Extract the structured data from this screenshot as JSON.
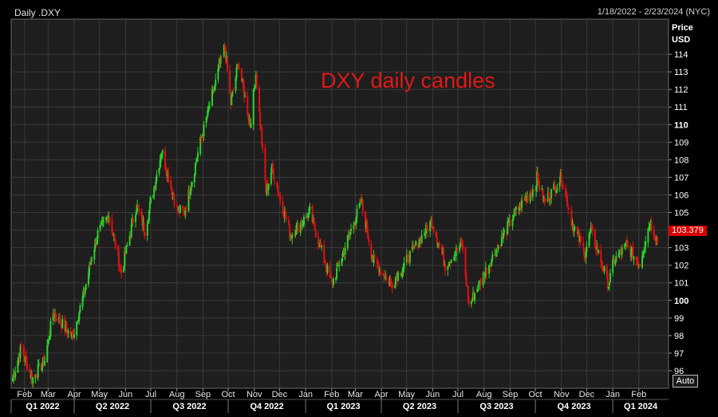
{
  "header": {
    "title": "Daily .DXY",
    "range": "1/18/2022 - 2/23/2024 (NYC)"
  },
  "axis": {
    "price_label": "Price",
    "unit_label": "USD",
    "auto_label": "Auto",
    "last_price": "103.379"
  },
  "colors": {
    "background": "#000000",
    "plot_background": "#1e1e1e",
    "grid": "#3a3a3a",
    "up": "#2bd12b",
    "down": "#e01010",
    "annotation": "#e01818",
    "last_tag": "#d80000"
  },
  "chart_data": {
    "type": "candlestick",
    "title": "DXY daily candles",
    "ylim": [
      95,
      116
    ],
    "y_ticks": [
      96,
      97,
      98,
      99,
      100,
      101,
      102,
      103,
      104,
      105,
      106,
      107,
      108,
      109,
      110,
      111,
      112,
      113,
      114
    ],
    "y_ticks_bold": [
      100,
      110
    ],
    "x_start": "2022-01-18",
    "x_end": "2024-02-23",
    "month_ticks": [
      {
        "label": "Feb",
        "date": "2022-02-01"
      },
      {
        "label": "Mar",
        "date": "2022-03-01"
      },
      {
        "label": "Apr",
        "date": "2022-04-01"
      },
      {
        "label": "May",
        "date": "2022-05-01"
      },
      {
        "label": "Jun",
        "date": "2022-06-01"
      },
      {
        "label": "Jul",
        "date": "2022-07-01"
      },
      {
        "label": "Aug",
        "date": "2022-08-01"
      },
      {
        "label": "Sep",
        "date": "2022-09-01"
      },
      {
        "label": "Oct",
        "date": "2022-10-01"
      },
      {
        "label": "Nov",
        "date": "2022-11-01"
      },
      {
        "label": "Dec",
        "date": "2022-12-01"
      },
      {
        "label": "Jan",
        "date": "2023-01-01"
      },
      {
        "label": "Feb",
        "date": "2023-02-01"
      },
      {
        "label": "Mar",
        "date": "2023-03-01"
      },
      {
        "label": "Apr",
        "date": "2023-04-01"
      },
      {
        "label": "May",
        "date": "2023-05-01"
      },
      {
        "label": "Jun",
        "date": "2023-06-01"
      },
      {
        "label": "Jul",
        "date": "2023-07-01"
      },
      {
        "label": "Aug",
        "date": "2023-08-01"
      },
      {
        "label": "Sep",
        "date": "2023-09-01"
      },
      {
        "label": "Oct",
        "date": "2023-10-01"
      },
      {
        "label": "Nov",
        "date": "2023-11-01"
      },
      {
        "label": "Dec",
        "date": "2023-12-01"
      },
      {
        "label": "Jan",
        "date": "2024-01-01"
      },
      {
        "label": "Feb",
        "date": "2024-02-01"
      }
    ],
    "quarter_ticks": [
      {
        "label": "Q1 2022",
        "start": "2022-01-01",
        "end": "2022-04-01"
      },
      {
        "label": "Q2 2022",
        "start": "2022-04-01",
        "end": "2022-07-01"
      },
      {
        "label": "Q3 2022",
        "start": "2022-07-01",
        "end": "2022-10-01"
      },
      {
        "label": "Q4 2022",
        "start": "2022-10-01",
        "end": "2023-01-01"
      },
      {
        "label": "Q1 2023",
        "start": "2023-01-01",
        "end": "2023-04-01"
      },
      {
        "label": "Q2 2023",
        "start": "2023-04-01",
        "end": "2023-07-01"
      },
      {
        "label": "Q3 2023",
        "start": "2023-07-01",
        "end": "2023-10-01"
      },
      {
        "label": "Q4 2023",
        "start": "2023-10-01",
        "end": "2024-01-01"
      },
      {
        "label": "Q1 2024",
        "start": "2024-01-01",
        "end": "2024-04-01"
      }
    ],
    "close_path": [
      {
        "date": "2022-01-18",
        "close": 95.6
      },
      {
        "date": "2022-01-28",
        "close": 97.3
      },
      {
        "date": "2022-02-10",
        "close": 95.5
      },
      {
        "date": "2022-02-25",
        "close": 96.6
      },
      {
        "date": "2022-03-07",
        "close": 99.3
      },
      {
        "date": "2022-03-30",
        "close": 97.9
      },
      {
        "date": "2022-04-12",
        "close": 100.3
      },
      {
        "date": "2022-04-28",
        "close": 103.7
      },
      {
        "date": "2022-05-12",
        "close": 104.9
      },
      {
        "date": "2022-05-27",
        "close": 101.6
      },
      {
        "date": "2022-06-14",
        "close": 105.4
      },
      {
        "date": "2022-06-24",
        "close": 104.0
      },
      {
        "date": "2022-07-14",
        "close": 108.5
      },
      {
        "date": "2022-08-01",
        "close": 105.2
      },
      {
        "date": "2022-08-10",
        "close": 105.0
      },
      {
        "date": "2022-08-29",
        "close": 109.0
      },
      {
        "date": "2022-09-27",
        "close": 114.5
      },
      {
        "date": "2022-10-04",
        "close": 111.2
      },
      {
        "date": "2022-10-13",
        "close": 113.5
      },
      {
        "date": "2022-10-27",
        "close": 110.0
      },
      {
        "date": "2022-11-03",
        "close": 112.9
      },
      {
        "date": "2022-11-15",
        "close": 106.2
      },
      {
        "date": "2022-11-22",
        "close": 107.5
      },
      {
        "date": "2022-12-14",
        "close": 103.7
      },
      {
        "date": "2023-01-06",
        "close": 105.0
      },
      {
        "date": "2023-02-01",
        "close": 100.9
      },
      {
        "date": "2023-03-08",
        "close": 105.6
      },
      {
        "date": "2023-03-22",
        "close": 102.3
      },
      {
        "date": "2023-04-13",
        "close": 100.9
      },
      {
        "date": "2023-05-31",
        "close": 104.5
      },
      {
        "date": "2023-06-16",
        "close": 102.0
      },
      {
        "date": "2023-07-06",
        "close": 103.2
      },
      {
        "date": "2023-07-14",
        "close": 99.7
      },
      {
        "date": "2023-08-04",
        "close": 101.8
      },
      {
        "date": "2023-09-07",
        "close": 105.0
      },
      {
        "date": "2023-09-28",
        "close": 106.3
      },
      {
        "date": "2023-10-03",
        "close": 107.0
      },
      {
        "date": "2023-10-12",
        "close": 105.6
      },
      {
        "date": "2023-11-01",
        "close": 107.0
      },
      {
        "date": "2023-11-15",
        "close": 104.2
      },
      {
        "date": "2023-11-29",
        "close": 102.7
      },
      {
        "date": "2023-12-06",
        "close": 104.0
      },
      {
        "date": "2023-12-27",
        "close": 100.9
      },
      {
        "date": "2024-01-02",
        "close": 102.2
      },
      {
        "date": "2024-01-17",
        "close": 103.1
      },
      {
        "date": "2024-02-02",
        "close": 102.1
      },
      {
        "date": "2024-02-14",
        "close": 104.5
      },
      {
        "date": "2024-02-23",
        "close": 103.379
      }
    ]
  }
}
